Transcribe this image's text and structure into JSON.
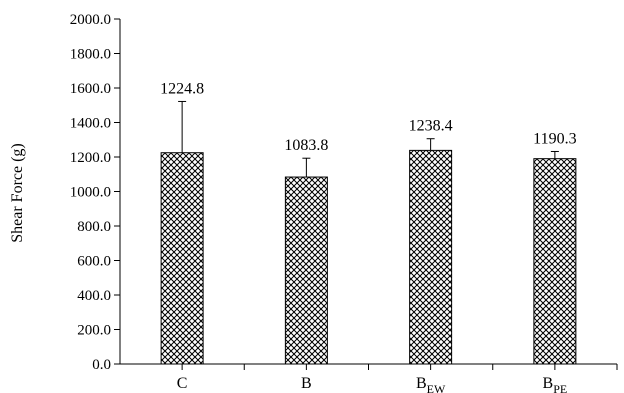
{
  "chart_data": {
    "type": "bar",
    "title": "",
    "xlabel": "",
    "ylabel": "Shear Force (g)",
    "ylim": [
      0,
      2000
    ],
    "yticks": [
      "0.0",
      "200.0",
      "400.0",
      "600.0",
      "800.0",
      "1000.0",
      "1200.0",
      "1400.0",
      "1600.0",
      "1800.0",
      "2000.0"
    ],
    "grid": false,
    "legend": "none",
    "bar_pattern": "crosshatch",
    "bar_color": "#ffffff",
    "edge_color": "#000000",
    "categories": [
      {
        "main": "C",
        "sub": ""
      },
      {
        "main": "B",
        "sub": ""
      },
      {
        "main": "B",
        "sub": "EW"
      },
      {
        "main": "B",
        "sub": "PE"
      }
    ],
    "values": [
      1224.8,
      1083.8,
      1238.4,
      1190.3
    ],
    "value_labels": [
      "1224.8",
      "1083.8",
      "1238.4",
      "1190.3"
    ],
    "error_upper": [
      1522,
      1193,
      1306,
      1232
    ]
  }
}
